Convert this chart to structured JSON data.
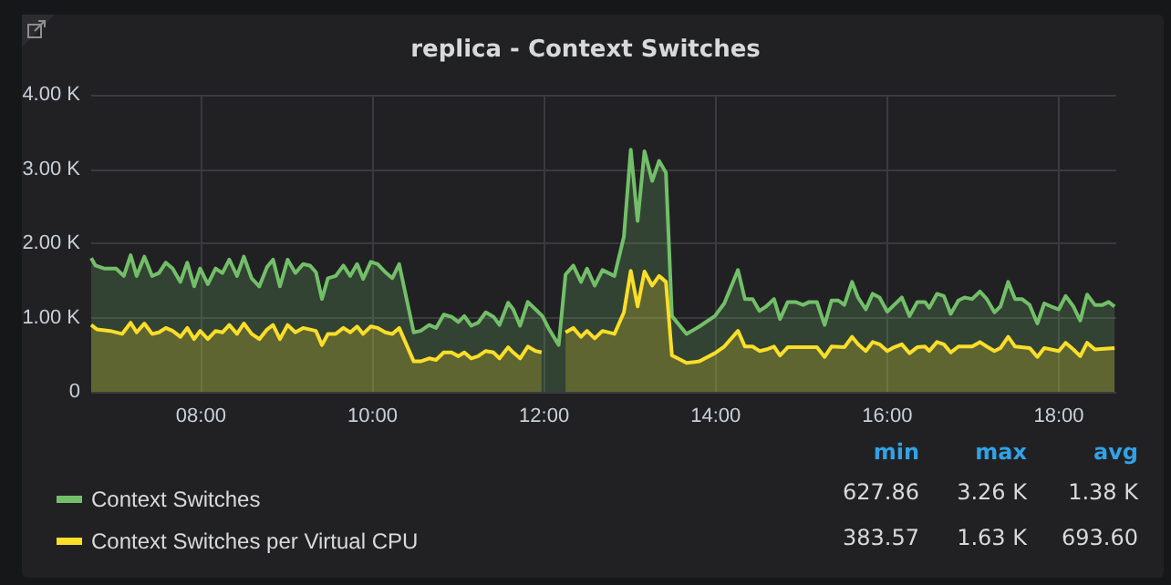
{
  "chart_data": {
    "type": "area",
    "title": "replica - Context Switches",
    "xlim": [
      6.72,
      18.67
    ],
    "xticks": [
      {
        "value": 8,
        "label": "08:00"
      },
      {
        "value": 10,
        "label": "10:00"
      },
      {
        "value": 12,
        "label": "12:00"
      },
      {
        "value": 14,
        "label": "14:00"
      },
      {
        "value": 16,
        "label": "16:00"
      },
      {
        "value": 18,
        "label": "18:00"
      }
    ],
    "ylim": [
      0,
      4000
    ],
    "yticks": [
      0,
      {
        "value": 1000,
        "label": "1.00 K"
      },
      {
        "value": 2000,
        "label": "2.00 K"
      },
      {
        "value": 3000,
        "label": "3.00 K"
      },
      {
        "value": 4000,
        "label": "4.00 K"
      }
    ],
    "grid": true,
    "legend": "bottom",
    "annotations": [
      "min",
      "max",
      "avg",
      "627.86",
      "3.26 K",
      "1.38 K",
      "383.57",
      "1.63 K",
      "693.60"
    ],
    "series": [
      {
        "name": "Context Switches",
        "color": "#73bf69",
        "x": [
          6.72,
          6.77,
          6.87,
          7.01,
          7.1,
          7.18,
          7.25,
          7.34,
          7.43,
          7.51,
          7.59,
          7.67,
          7.76,
          7.84,
          7.92,
          7.99,
          8.08,
          8.17,
          8.25,
          8.33,
          8.42,
          8.5,
          8.59,
          8.68,
          8.77,
          8.84,
          8.92,
          9.01,
          9.1,
          9.19,
          9.27,
          9.34,
          9.41,
          9.48,
          9.57,
          9.66,
          9.74,
          9.82,
          9.89,
          9.98,
          10.06,
          10.15,
          10.23,
          10.31,
          10.48,
          10.56,
          10.66,
          10.74,
          10.83,
          10.92,
          11.0,
          11.07,
          11.15,
          11.23,
          11.32,
          11.41,
          11.48,
          11.58,
          11.64,
          11.72,
          11.81,
          11.9,
          11.98,
          12.05,
          12.17,
          12.25,
          12.34,
          12.43,
          12.5,
          12.59,
          12.68,
          12.82,
          12.93,
          13.01,
          13.09,
          13.17,
          13.26,
          13.34,
          13.42,
          13.49,
          13.66,
          13.81,
          13.99,
          14.1,
          14.26,
          14.34,
          14.43,
          14.51,
          14.59,
          14.68,
          14.75,
          14.84,
          14.93,
          15.02,
          15.09,
          15.18,
          15.27,
          15.35,
          15.43,
          15.5,
          15.59,
          15.66,
          15.75,
          15.83,
          15.91,
          16.0,
          16.08,
          16.17,
          16.26,
          16.35,
          16.44,
          16.49,
          16.58,
          16.66,
          16.74,
          16.83,
          16.9,
          16.99,
          17.08,
          17.16,
          17.25,
          17.32,
          17.41,
          17.49,
          17.57,
          17.66,
          17.75,
          17.83,
          17.91,
          18.0,
          18.08,
          18.17,
          18.25,
          18.33,
          18.42,
          18.51,
          18.58,
          18.65
        ],
        "values": [
          1800,
          1700,
          1660,
          1660,
          1560,
          1840,
          1560,
          1820,
          1560,
          1600,
          1740,
          1660,
          1480,
          1740,
          1420,
          1660,
          1450,
          1660,
          1600,
          1780,
          1560,
          1820,
          1530,
          1420,
          1680,
          1780,
          1420,
          1780,
          1600,
          1720,
          1700,
          1610,
          1250,
          1530,
          1560,
          1700,
          1560,
          1720,
          1520,
          1750,
          1720,
          1610,
          1530,
          1720,
          800,
          820,
          900,
          860,
          1040,
          1010,
          940,
          1020,
          890,
          930,
          1070,
          1010,
          900,
          1200,
          1110,
          890,
          1210,
          1110,
          1020,
          860,
          630,
          1580,
          1700,
          1480,
          1660,
          1430,
          1640,
          1560,
          2090,
          3260,
          2300,
          3240,
          2840,
          3110,
          2950,
          1020,
          780,
          880,
          1020,
          1190,
          1640,
          1250,
          1250,
          1090,
          1150,
          1250,
          980,
          1210,
          1210,
          1170,
          1210,
          1210,
          900,
          1230,
          1230,
          1170,
          1480,
          1270,
          1110,
          1320,
          1270,
          1080,
          1170,
          1270,
          1020,
          1210,
          1210,
          1130,
          1320,
          1290,
          1050,
          1230,
          1270,
          1250,
          1350,
          1250,
          1070,
          1150,
          1480,
          1250,
          1250,
          1170,
          920,
          1190,
          1150,
          1110,
          1290,
          1150,
          960,
          1310,
          1170,
          1170,
          1210,
          1150
        ]
      },
      {
        "name": "Context Switches per Virtual CPU",
        "color": "#fade2a",
        "x": [
          6.72,
          6.79,
          6.94,
          7.08,
          7.18,
          7.25,
          7.34,
          7.43,
          7.51,
          7.59,
          7.67,
          7.76,
          7.84,
          7.92,
          7.99,
          8.08,
          8.17,
          8.25,
          8.33,
          8.42,
          8.5,
          8.59,
          8.68,
          8.77,
          8.84,
          8.92,
          9.01,
          9.1,
          9.19,
          9.34,
          9.41,
          9.48,
          9.57,
          9.66,
          9.74,
          9.82,
          9.89,
          9.98,
          10.06,
          10.15,
          10.23,
          10.31,
          10.48,
          10.56,
          10.66,
          10.74,
          10.83,
          10.92,
          11.0,
          11.07,
          11.15,
          11.23,
          11.32,
          11.41,
          11.48,
          11.58,
          11.64,
          11.72,
          11.81,
          11.9,
          11.97,
          12.1,
          12.25,
          12.34,
          12.43,
          12.5,
          12.59,
          12.68,
          12.82,
          12.93,
          13.01,
          13.09,
          13.17,
          13.26,
          13.34,
          13.42,
          13.49,
          13.66,
          13.81,
          13.99,
          14.1,
          14.26,
          14.34,
          14.43,
          14.51,
          14.59,
          14.68,
          14.75,
          14.84,
          15.02,
          15.18,
          15.27,
          15.35,
          15.5,
          15.59,
          15.66,
          15.75,
          15.83,
          15.91,
          16.0,
          16.08,
          16.17,
          16.26,
          16.35,
          16.44,
          16.49,
          16.58,
          16.66,
          16.74,
          16.83,
          16.99,
          17.08,
          17.16,
          17.25,
          17.32,
          17.41,
          17.49,
          17.66,
          17.75,
          17.83,
          18.0,
          18.08,
          18.17,
          18.25,
          18.33,
          18.42,
          18.65
        ],
        "values": [
          900,
          840,
          820,
          780,
          930,
          800,
          920,
          780,
          800,
          860,
          820,
          740,
          860,
          710,
          820,
          710,
          820,
          800,
          900,
          780,
          920,
          780,
          710,
          840,
          900,
          710,
          900,
          800,
          860,
          820,
          630,
          780,
          780,
          860,
          800,
          880,
          780,
          880,
          860,
          800,
          780,
          860,
          410,
          410,
          450,
          430,
          530,
          530,
          480,
          530,
          450,
          480,
          550,
          530,
          450,
          600,
          530,
          450,
          610,
          550,
          530,
          null,
          800,
          860,
          740,
          820,
          720,
          820,
          780,
          1070,
          1630,
          1150,
          1620,
          1430,
          1560,
          1480,
          490,
          390,
          410,
          520,
          610,
          820,
          610,
          610,
          550,
          570,
          610,
          490,
          600,
          600,
          600,
          470,
          610,
          600,
          740,
          640,
          550,
          670,
          640,
          550,
          600,
          640,
          520,
          600,
          610,
          550,
          670,
          640,
          530,
          610,
          610,
          670,
          610,
          550,
          590,
          740,
          610,
          590,
          470,
          590,
          550,
          660,
          570,
          480,
          660,
          570,
          590
        ]
      }
    ]
  }
}
